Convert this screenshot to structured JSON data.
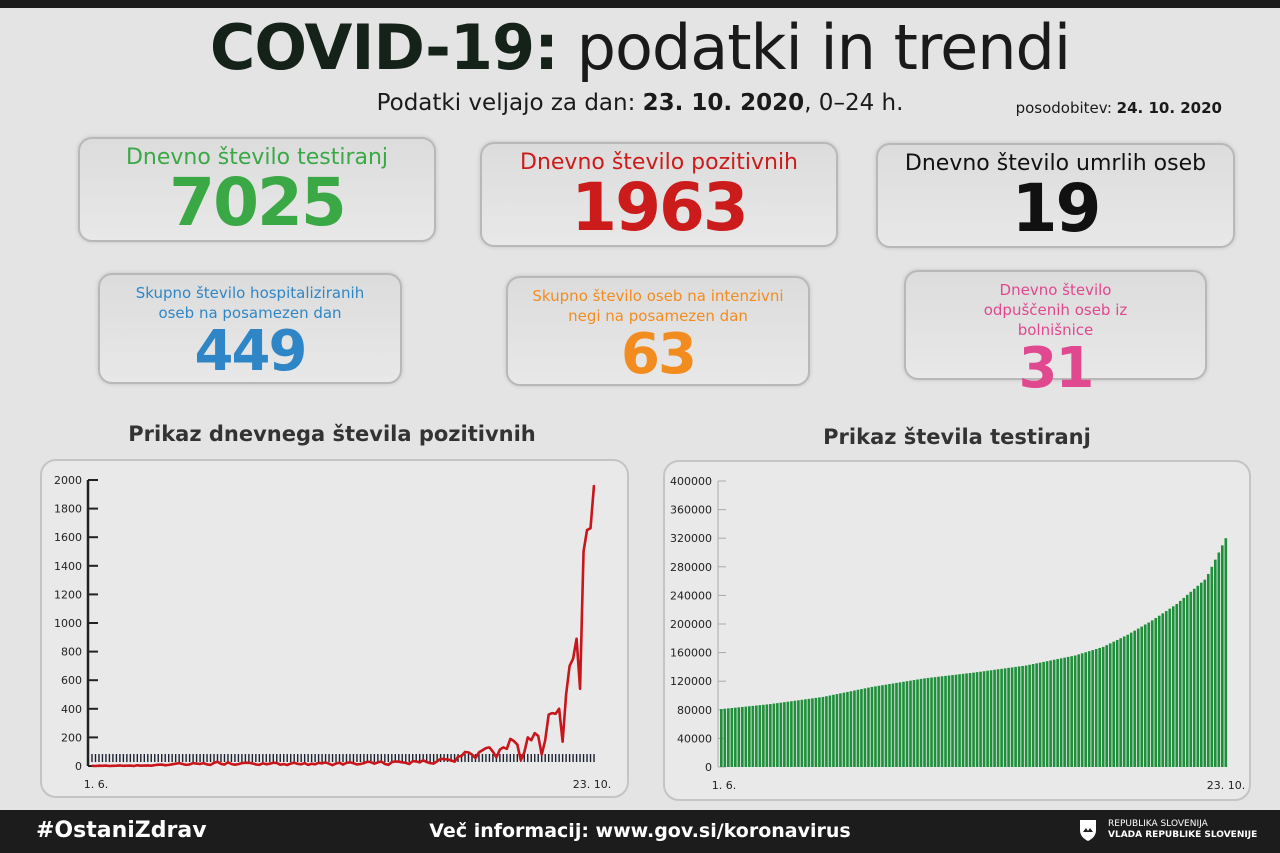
{
  "header": {
    "title_bold": "COVID-19:",
    "title_rest": " podatki in trendi",
    "subtitle_prefix": "Podatki veljajo za dan: ",
    "subtitle_date": "23. 10. 2020",
    "subtitle_suffix": ", 0–24 h.",
    "updated_label": "posodobitev: ",
    "updated_date": "24. 10. 2020"
  },
  "cards": [
    {
      "label": "Dnevno število testiranj",
      "value": "7025",
      "color": "#3aa845"
    },
    {
      "label": "Dnevno število pozitivnih",
      "value": "1963",
      "color": "#cc1b1b"
    },
    {
      "label": "Dnevno število umrlih oseb",
      "value": "19",
      "color": "#111111"
    },
    {
      "label": "Skupno število hospitaliziranih oseb na posamezen dan",
      "value": "449",
      "color": "#2f86c6"
    },
    {
      "label": "Skupno število oseb na intenzivni negi na posamezen dan",
      "value": "63",
      "color": "#f28c1f"
    },
    {
      "label": "Dnevno število odpuščenih oseb iz bolnišnice",
      "value": "31",
      "color": "#e0488f"
    }
  ],
  "chart_data": [
    {
      "type": "line",
      "title": "Prikaz dnevnega števila pozitivnih",
      "color": "#c8161d",
      "ylim": [
        0,
        2000
      ],
      "yticks": [
        "0",
        "200",
        "400",
        "600",
        "800",
        "1000",
        "1200",
        "1400",
        "1600",
        "1800",
        "2000"
      ],
      "x_start_label": "1. 6.",
      "x_end_label": "23. 10.",
      "values": [
        1,
        0,
        2,
        1,
        3,
        0,
        1,
        2,
        4,
        1,
        2,
        3,
        0,
        5,
        2,
        3,
        4,
        2,
        6,
        9,
        10,
        5,
        8,
        12,
        16,
        20,
        14,
        8,
        11,
        20,
        17,
        14,
        20,
        11,
        8,
        22,
        30,
        15,
        10,
        26,
        14,
        9,
        13,
        20,
        22,
        23,
        18,
        11,
        8,
        19,
        12,
        16,
        23,
        21,
        9,
        13,
        7,
        17,
        23,
        15,
        12,
        20,
        8,
        16,
        12,
        22,
        18,
        25,
        16,
        6,
        18,
        23,
        10,
        22,
        26,
        19,
        11,
        14,
        20,
        30,
        27,
        16,
        25,
        31,
        15,
        8,
        27,
        32,
        30,
        26,
        22,
        14,
        34,
        32,
        25,
        40,
        28,
        20,
        17,
        33,
        50,
        48,
        45,
        40,
        30,
        65,
        70,
        98,
        95,
        80,
        55,
        95,
        110,
        125,
        130,
        100,
        60,
        115,
        130,
        120,
        190,
        175,
        150,
        40,
        95,
        200,
        180,
        230,
        210,
        80,
        180,
        360,
        370,
        365,
        400,
        170,
        500,
        700,
        750,
        890,
        540,
        1500,
        1650,
        1663,
        1963
      ]
    },
    {
      "type": "bar",
      "title": "Prikaz števila testiranj",
      "color": "#1e8f3a",
      "ylim": [
        0,
        400000
      ],
      "yticks": [
        "0",
        "40000",
        "80000",
        "120000",
        "160000",
        "200000",
        "240000",
        "280000",
        "320000",
        "360000",
        "400000"
      ],
      "x_start_label": "1. 6.",
      "x_end_label": "23. 10.",
      "values": [
        81000,
        81500,
        82000,
        82500,
        83000,
        83500,
        84000,
        84500,
        85000,
        85500,
        86000,
        86500,
        87000,
        87500,
        88000,
        88700,
        89300,
        90000,
        90700,
        91300,
        92000,
        92700,
        93300,
        94000,
        94700,
        95300,
        96000,
        96700,
        97300,
        98000,
        99000,
        100000,
        101000,
        102000,
        103000,
        104000,
        105000,
        106000,
        107000,
        108000,
        109000,
        110000,
        111000,
        112000,
        112800,
        113600,
        114400,
        115200,
        116000,
        116800,
        117600,
        118400,
        119200,
        120000,
        120800,
        121600,
        122400,
        123200,
        124000,
        124600,
        125100,
        125700,
        126300,
        126900,
        127400,
        128000,
        128600,
        129100,
        129700,
        130300,
        130900,
        131400,
        132000,
        132700,
        133300,
        134000,
        134700,
        135300,
        136000,
        136700,
        137300,
        138000,
        138700,
        139300,
        140000,
        140700,
        141300,
        142000,
        143000,
        144000,
        145000,
        146000,
        147000,
        148000,
        149000,
        150000,
        151000,
        152000,
        153000,
        154000,
        155000,
        156000,
        157500,
        159000,
        160500,
        162000,
        163500,
        165000,
        166500,
        168000,
        170400,
        172900,
        175300,
        177700,
        180100,
        182600,
        185000,
        187900,
        190700,
        193600,
        196400,
        199300,
        202100,
        205000,
        208300,
        211600,
        214900,
        218100,
        221400,
        224700,
        228000,
        232300,
        236500,
        240800,
        245000,
        249300,
        253500,
        257800,
        262000,
        270000,
        280000,
        290000,
        300000,
        310000,
        320000
      ]
    }
  ],
  "footer": {
    "hashtag": "#OstaniZdrav",
    "more_info": "Več informacij: www.gov.si/koronavirus",
    "logo_line1": "REPUBLIKA SLOVENIJA",
    "logo_line2": "VLADA REPUBLIKE SLOVENIJE"
  }
}
